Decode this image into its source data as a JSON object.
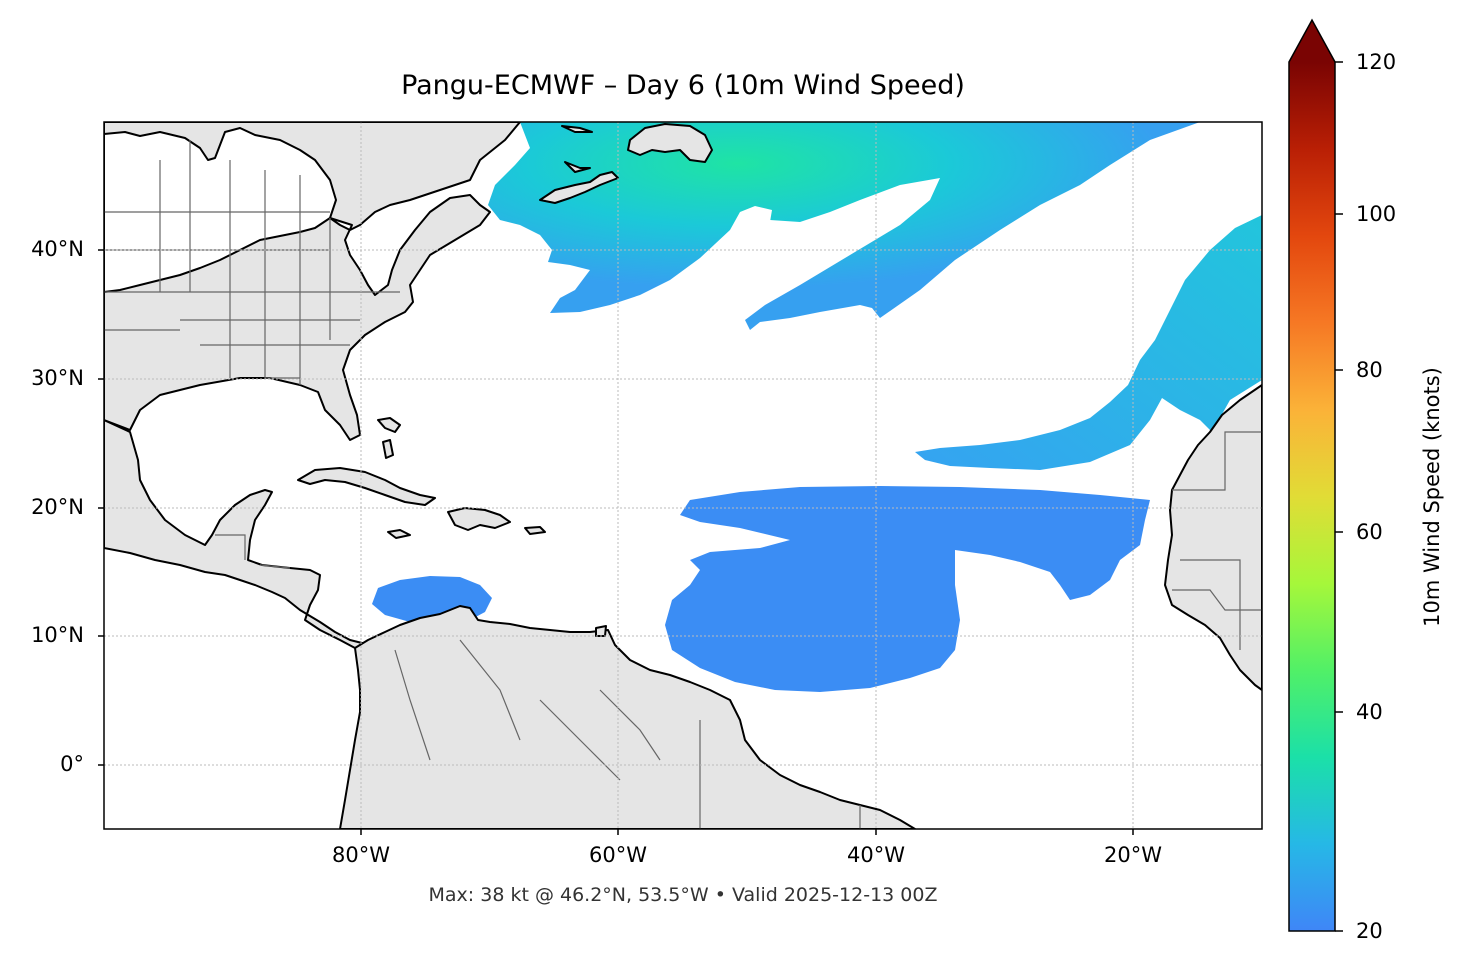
{
  "title": "Pangu-ECMWF – Day 6 (10m Wind Speed)",
  "footer": {
    "max_label": "Max: 38 kt @ 46.2°N, 53.5°W",
    "separator": "•",
    "valid_label": "Valid 2025-12-13 00Z"
  },
  "map": {
    "lat_range": [
      -5,
      50
    ],
    "lon_range": [
      -100,
      -10
    ],
    "lat_ticks": [
      {
        "value": 40,
        "label": "40°N"
      },
      {
        "value": 30,
        "label": "30°N"
      },
      {
        "value": 20,
        "label": "20°N"
      },
      {
        "value": 10,
        "label": "10°N"
      },
      {
        "value": 0,
        "label": "0°"
      }
    ],
    "lon_ticks": [
      {
        "value": -80,
        "label": "80°W"
      },
      {
        "value": -60,
        "label": "60°W"
      },
      {
        "value": -40,
        "label": "40°W"
      },
      {
        "value": -20,
        "label": "20°W"
      }
    ],
    "land_color": "#e5e5e5",
    "coast_color": "#000000",
    "border_color": "#666666",
    "grid_color": "#bbbbbb"
  },
  "colorbar": {
    "label": "10m Wind Speed (knots)",
    "range": [
      20,
      120
    ],
    "extend": "max",
    "ticks": [
      {
        "value": 120,
        "label": "120"
      },
      {
        "value": 100,
        "label": "100"
      },
      {
        "value": 80,
        "label": "80"
      },
      {
        "value": 60,
        "label": "60"
      },
      {
        "value": 40,
        "label": "40"
      },
      {
        "value": 20,
        "label": "20"
      }
    ],
    "colormap": [
      "#3f86f7",
      "#26b8e6",
      "#1be0a8",
      "#51f067",
      "#a6f73a",
      "#e1dc36",
      "#fbb238",
      "#f67824",
      "#e3470e",
      "#b91f05",
      "#7a0403"
    ]
  }
}
